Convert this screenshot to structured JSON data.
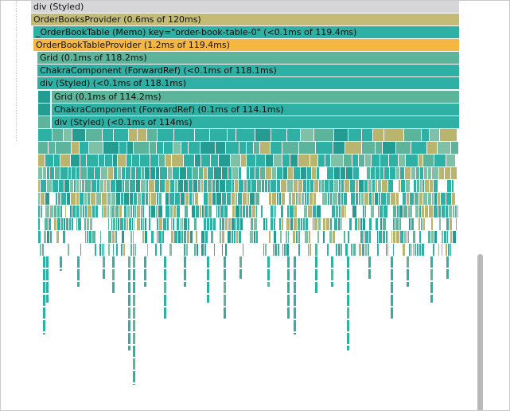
{
  "colors": {
    "gray": "#d6d6d9",
    "olive": "#c4bc76",
    "teal": "#2fb0a4",
    "tealDark": "#249c91",
    "green": "#5cb49a",
    "greenLight": "#7fc1a7",
    "orange": "#f6b742",
    "khaki": "#b9b56f"
  },
  "rows": [
    {
      "label": "div (Styled)",
      "color": "gray"
    },
    {
      "label": "OrderBooksProvider (0.6ms of 120ms)",
      "color": "olive"
    },
    {
      "label": "_OrderBookTable (Memo) key=\"order-book-table-0\" (<0.1ms of 119.4ms)",
      "color": "teal"
    },
    {
      "label": "OrderBookTableProvider (1.2ms of 119.4ms)",
      "color": "orange"
    },
    {
      "label": "Grid (0.1ms of 118.2ms)",
      "color": "green"
    },
    {
      "label": "ChakraComponent (ForwardRef) (<0.1ms of 118.1ms)",
      "color": "teal"
    },
    {
      "label": "div (Styled) (<0.1ms of 118.1ms)",
      "color": "teal"
    },
    {
      "label": "Grid (0.1ms of 114.2ms)",
      "color": "green"
    },
    {
      "label": "ChakraComponent (ForwardRef) (0.1ms of 114.1ms)",
      "color": "teal"
    },
    {
      "label": "div (Styled) (<0.1ms of 114ms)",
      "color": "teal"
    }
  ]
}
